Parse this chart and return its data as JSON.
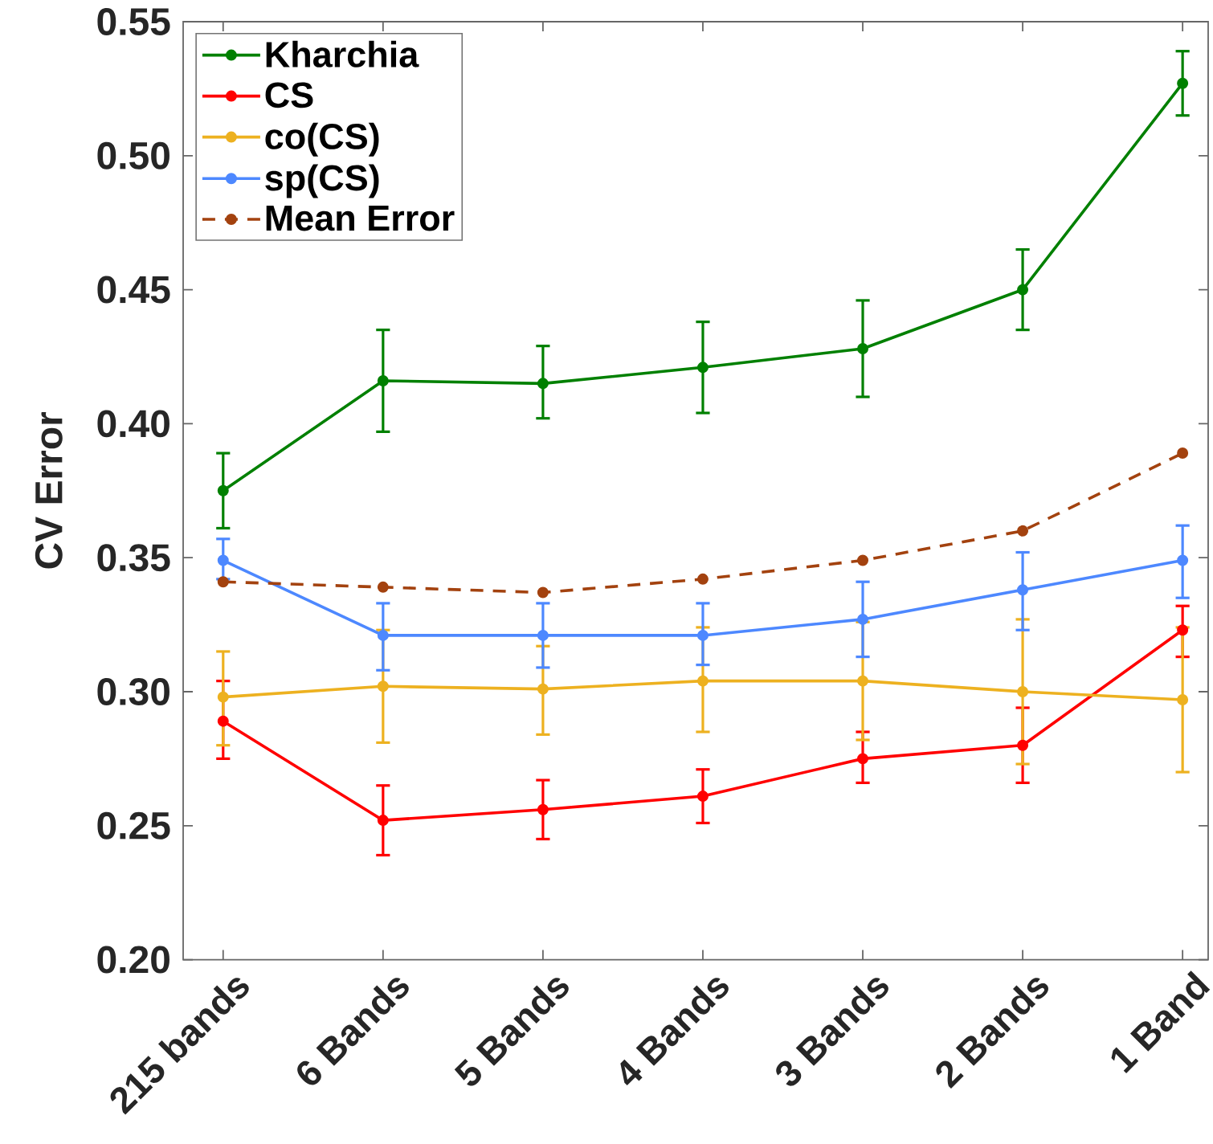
{
  "chart_data": {
    "type": "line",
    "ylabel": "CV Error",
    "categories": [
      "215 bands",
      "6 Bands",
      "5 Bands",
      "4 Bands",
      "3 Bands",
      "2 Bands",
      "1 Band"
    ],
    "series": [
      {
        "name": "Kharchia",
        "color": "#008000",
        "values": [
          0.375,
          0.416,
          0.415,
          0.421,
          0.428,
          0.45,
          0.527
        ],
        "errors": [
          [
            0.361,
            0.389
          ],
          [
            0.397,
            0.435
          ],
          [
            0.402,
            0.429
          ],
          [
            0.404,
            0.438
          ],
          [
            0.41,
            0.446
          ],
          [
            0.435,
            0.465
          ],
          [
            0.515,
            0.539
          ]
        ]
      },
      {
        "name": "CS",
        "color": "#ff0000",
        "values": [
          0.289,
          0.252,
          0.256,
          0.261,
          0.275,
          0.28,
          0.323
        ],
        "errors": [
          [
            0.275,
            0.304
          ],
          [
            0.239,
            0.265
          ],
          [
            0.245,
            0.267
          ],
          [
            0.251,
            0.271
          ],
          [
            0.266,
            0.285
          ],
          [
            0.266,
            0.294
          ],
          [
            0.313,
            0.332
          ]
        ]
      },
      {
        "name": "co(CS)",
        "color": "#edb120",
        "values": [
          0.298,
          0.302,
          0.301,
          0.304,
          0.304,
          0.3,
          0.297
        ],
        "errors": [
          [
            0.28,
            0.315
          ],
          [
            0.281,
            0.323
          ],
          [
            0.284,
            0.317
          ],
          [
            0.285,
            0.324
          ],
          [
            0.282,
            0.326
          ],
          [
            0.273,
            0.327
          ],
          [
            0.27,
            0.324
          ]
        ]
      },
      {
        "name": "sp(CS)",
        "color": "#4d88ff",
        "values": [
          0.349,
          0.321,
          0.321,
          0.321,
          0.327,
          0.338,
          0.349
        ],
        "errors": [
          [
            0.342,
            0.357
          ],
          [
            0.308,
            0.333
          ],
          [
            0.309,
            0.333
          ],
          [
            0.31,
            0.333
          ],
          [
            0.313,
            0.341
          ],
          [
            0.323,
            0.352
          ],
          [
            0.335,
            0.362
          ]
        ]
      },
      {
        "name": "Mean Error",
        "color": "#a3420f",
        "line_style": "dashed",
        "values": [
          0.341,
          0.339,
          0.337,
          0.342,
          0.349,
          0.36,
          0.389
        ]
      }
    ],
    "ylim": [
      0.2,
      0.55
    ],
    "yticks": [
      {
        "value": 0.2,
        "label": "0.20"
      },
      0.25,
      {
        "value": 0.3,
        "label": "0.30"
      },
      0.35,
      {
        "value": 0.4,
        "label": "0.40"
      },
      0.45,
      {
        "value": 0.5,
        "label": "0.50"
      },
      0.55
    ],
    "legend": "top left",
    "marker": "circle"
  }
}
